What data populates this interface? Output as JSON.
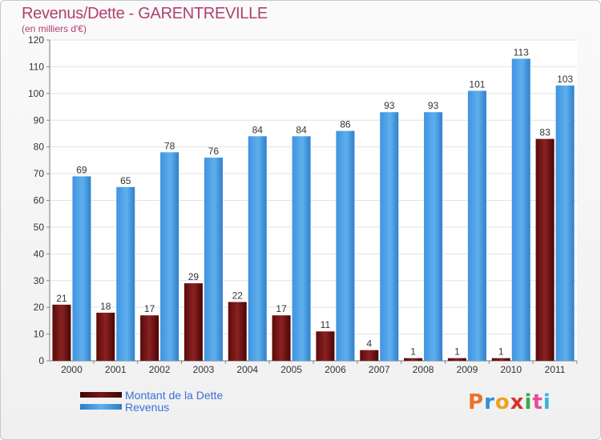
{
  "header": {
    "title": "Revenus/Dette - GARENTREVILLE",
    "subtitle": "(en milliers d'€)"
  },
  "legend": [
    {
      "label": "Montant de la Dette",
      "color": "#6e0d0d"
    },
    {
      "label": "Revenus",
      "color": "#3a93df"
    }
  ],
  "logo": {
    "text": "Proxiti",
    "letter_colors": [
      "#e8732a",
      "#2f8fd8",
      "#f0a020",
      "#d6302f",
      "#3aa845",
      "#e84a9a",
      "#37b3e0"
    ]
  },
  "chart_data": {
    "type": "bar",
    "categories": [
      "2000",
      "2001",
      "2002",
      "2003",
      "2004",
      "2005",
      "2006",
      "2007",
      "2008",
      "2009",
      "2010",
      "2011"
    ],
    "series": [
      {
        "name": "Montant de la Dette",
        "values": [
          21,
          18,
          17,
          29,
          22,
          17,
          11,
          4,
          1,
          1,
          1,
          83
        ],
        "color": "#6e0d0d"
      },
      {
        "name": "Revenus",
        "values": [
          69,
          65,
          78,
          76,
          84,
          84,
          86,
          93,
          93,
          101,
          113,
          103
        ],
        "color": "#3a93df"
      }
    ],
    "title": "Revenus/Dette - GARENTREVILLE",
    "ylabel": "(en milliers d'€)",
    "ylim": [
      0,
      120
    ],
    "yticks": [
      0,
      10,
      20,
      30,
      40,
      50,
      60,
      70,
      80,
      90,
      100,
      110,
      120
    ],
    "grid": true,
    "legend_position": "bottom-left"
  }
}
